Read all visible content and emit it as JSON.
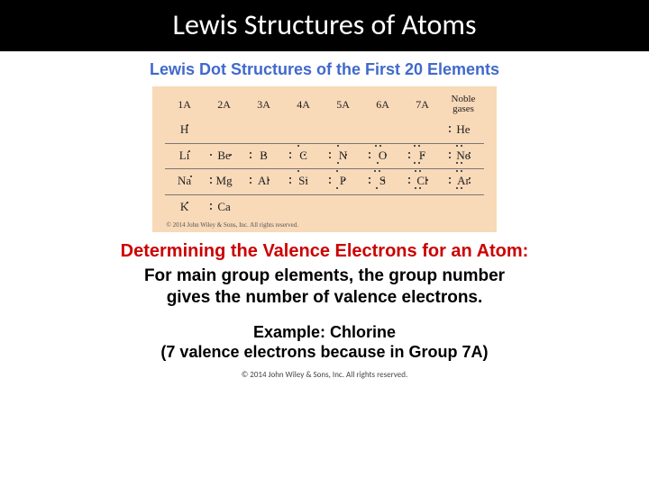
{
  "title": "Lewis Structures of Atoms",
  "subtitle": "Lewis Dot Structures of the First 20 Elements",
  "diagram": {
    "background": "#f8d9b8",
    "headers": [
      "1A",
      "2A",
      "3A",
      "4A",
      "5A",
      "6A",
      "7A",
      "Noble gases"
    ],
    "rows": [
      [
        {
          "sym": "H",
          "dots": [
            {
              "x": 14,
              "y": 2
            }
          ]
        },
        null,
        null,
        null,
        null,
        null,
        null,
        {
          "sym": "He",
          "dots": [
            {
              "x": -4,
              "y": 4
            },
            {
              "x": -4,
              "y": 9
            }
          ]
        }
      ],
      [
        {
          "sym": "Li",
          "dots": [
            {
              "x": 16,
              "y": 2
            }
          ]
        },
        {
          "sym": "Be",
          "dots": [
            {
              "x": -4,
              "y": 6
            },
            {
              "x": 18,
              "y": 6
            }
          ]
        },
        {
          "sym": "B",
          "dots": [
            {
              "x": -4,
              "y": 4
            },
            {
              "x": -4,
              "y": 9
            },
            {
              "x": 12,
              "y": 6
            }
          ]
        },
        {
          "sym": "C",
          "dots": [
            {
              "x": -4,
              "y": 4
            },
            {
              "x": -4,
              "y": 9
            },
            {
              "x": 5,
              "y": -4
            },
            {
              "x": 12,
              "y": 6
            }
          ]
        },
        {
          "sym": "N",
          "dots": [
            {
              "x": -4,
              "y": 4
            },
            {
              "x": -4,
              "y": 9
            },
            {
              "x": 5,
              "y": -4
            },
            {
              "x": 5,
              "y": 15
            },
            {
              "x": 14,
              "y": 6
            }
          ]
        },
        {
          "sym": "O",
          "dots": [
            {
              "x": -4,
              "y": 4
            },
            {
              "x": -4,
              "y": 9
            },
            {
              "x": 3,
              "y": -4
            },
            {
              "x": 8,
              "y": -4
            },
            {
              "x": 5,
              "y": 15
            },
            {
              "x": 14,
              "y": 6
            }
          ]
        },
        {
          "sym": "F",
          "dots": [
            {
              "x": -4,
              "y": 4
            },
            {
              "x": -4,
              "y": 9
            },
            {
              "x": 2,
              "y": -4
            },
            {
              "x": 7,
              "y": -4
            },
            {
              "x": 2,
              "y": 15
            },
            {
              "x": 7,
              "y": 15
            },
            {
              "x": 12,
              "y": 6
            }
          ]
        },
        {
          "sym": "Ne",
          "dots": [
            {
              "x": -4,
              "y": 4
            },
            {
              "x": -4,
              "y": 9
            },
            {
              "x": 4,
              "y": -4
            },
            {
              "x": 9,
              "y": -4
            },
            {
              "x": 4,
              "y": 15
            },
            {
              "x": 9,
              "y": 15
            },
            {
              "x": 18,
              "y": 4
            },
            {
              "x": 18,
              "y": 9
            }
          ]
        }
      ],
      [
        {
          "sym": "Na",
          "dots": [
            {
              "x": 18,
              "y": 2
            }
          ]
        },
        {
          "sym": "Mg",
          "dots": [
            {
              "x": -4,
              "y": 4
            },
            {
              "x": -4,
              "y": 9
            }
          ]
        },
        {
          "sym": "Al",
          "dots": [
            {
              "x": -4,
              "y": 4
            },
            {
              "x": -4,
              "y": 9
            },
            {
              "x": 16,
              "y": 6
            }
          ]
        },
        {
          "sym": "Si",
          "dots": [
            {
              "x": -4,
              "y": 4
            },
            {
              "x": -4,
              "y": 9
            },
            {
              "x": 5,
              "y": -4
            },
            {
              "x": 14,
              "y": 6
            }
          ]
        },
        {
          "sym": "P",
          "dots": [
            {
              "x": -4,
              "y": 4
            },
            {
              "x": -4,
              "y": 9
            },
            {
              "x": 4,
              "y": -4
            },
            {
              "x": 4,
              "y": 15
            },
            {
              "x": 12,
              "y": 6
            }
          ]
        },
        {
          "sym": "S",
          "dots": [
            {
              "x": -4,
              "y": 4
            },
            {
              "x": -4,
              "y": 9
            },
            {
              "x": 2,
              "y": -4
            },
            {
              "x": 7,
              "y": -4
            },
            {
              "x": 4,
              "y": 15
            },
            {
              "x": 12,
              "y": 6
            }
          ]
        },
        {
          "sym": "Cl",
          "dots": [
            {
              "x": -4,
              "y": 4
            },
            {
              "x": -4,
              "y": 9
            },
            {
              "x": 3,
              "y": -4
            },
            {
              "x": 8,
              "y": -4
            },
            {
              "x": 3,
              "y": 15
            },
            {
              "x": 8,
              "y": 15
            },
            {
              "x": 16,
              "y": 6
            }
          ]
        },
        {
          "sym": "Ar",
          "dots": [
            {
              "x": -4,
              "y": 4
            },
            {
              "x": -4,
              "y": 9
            },
            {
              "x": 4,
              "y": -4
            },
            {
              "x": 9,
              "y": -4
            },
            {
              "x": 4,
              "y": 15
            },
            {
              "x": 9,
              "y": 15
            },
            {
              "x": 18,
              "y": 4
            },
            {
              "x": 18,
              "y": 9
            }
          ]
        }
      ],
      [
        {
          "sym": "K",
          "dots": [
            {
              "x": 14,
              "y": 2
            }
          ]
        },
        {
          "sym": "Ca",
          "dots": [
            {
              "x": -4,
              "y": 4
            },
            {
              "x": -4,
              "y": 9
            }
          ]
        },
        null,
        null,
        null,
        null,
        null,
        null
      ]
    ],
    "caption": "© 2014 John Wiley & Sons, Inc. All rights reserved."
  },
  "red_heading": "Determining the Valence Electrons for an Atom:",
  "body_line1": "For main group elements, the group number",
  "body_line2": "gives the number of valence electrons.",
  "example_line1": "Example: Chlorine",
  "example_line2": "(7 valence electrons because in Group 7A)",
  "copyright": "© 2014 John Wiley & Sons, Inc. All rights reserved."
}
